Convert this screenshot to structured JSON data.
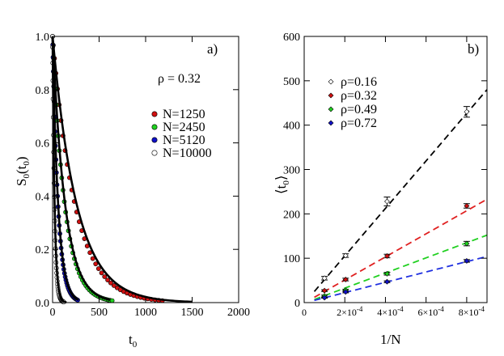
{
  "chart_data": [
    {
      "type": "scatter",
      "panel_label": "a)",
      "annotation": "ρ = 0.32",
      "xlabel": "t",
      "xlabel_sub": "0",
      "ylabel": "S",
      "ylabel_sub": "0",
      "ylabel_arg": "t",
      "ylabel_arg_sub": "0",
      "xlim": [
        0,
        2000
      ],
      "ylim": [
        0,
        1.0
      ],
      "xticks": [
        0,
        500,
        1000,
        1500,
        2000
      ],
      "xtick_labels": [
        "0",
        "500",
        "1000",
        "1500",
        "2000"
      ],
      "yticks": [
        0,
        0.2,
        0.4,
        0.6,
        0.8,
        1.0
      ],
      "ytick_labels": [
        "0.0",
        "0.2",
        "0.4",
        "0.6",
        "0.8",
        "1.0"
      ],
      "legend_position": "right",
      "series": [
        {
          "name": "N=1250",
          "color": "#d01010",
          "tau": 240,
          "tmax": 1180
        },
        {
          "name": "N=2450",
          "color": "#20d020",
          "tau": 130,
          "tmax": 640
        },
        {
          "name": "N=5120",
          "color": "#1010c8",
          "tau": 58,
          "tmax": 270
        },
        {
          "name": "N=10000",
          "color": "#ffffff",
          "tau": 20,
          "tmax": 120
        }
      ],
      "black_curves": [
        {
          "tau": 260,
          "tmax": 1500
        },
        {
          "tau": 135,
          "tmax": 620
        },
        {
          "tau": 60,
          "tmax": 280
        },
        {
          "tau": 22,
          "tmax": 150
        }
      ]
    },
    {
      "type": "scatter",
      "panel_label": "b)",
      "xlabel": "1/N",
      "ylabel": "⟨t",
      "ylabel_sub": "0",
      "ylabel_close": "⟩",
      "xlim": [
        0,
        0.0009
      ],
      "ylim": [
        0,
        600
      ],
      "xticks": [
        0,
        0.0002,
        0.0004,
        0.0006,
        0.0008
      ],
      "xtick_labels": [
        "0",
        "2×10",
        "4×10",
        "6×10",
        "8×10"
      ],
      "xtick_exponent": "-4",
      "yticks": [
        0,
        100,
        200,
        300,
        400,
        500,
        600
      ],
      "ytick_labels": [
        "0",
        "100",
        "200",
        "300",
        "400",
        "500",
        "600"
      ],
      "legend_position": "top-left",
      "series": [
        {
          "name": "ρ=0.16",
          "color": "#ffffff",
          "line_color": "#000000",
          "x": [
            0.0001,
            0.000204,
            0.000408,
            0.0008
          ],
          "y": [
            55,
            106,
            228,
            430
          ],
          "err": [
            4,
            4,
            10,
            12
          ],
          "fit": [
            [
              5e-05,
              25
            ],
            [
              0.0009,
              480
            ]
          ]
        },
        {
          "name": "ρ=0.32",
          "color": "#d01010",
          "line_color": "#e02020",
          "x": [
            0.0001,
            0.000204,
            0.000408,
            0.0008
          ],
          "y": [
            27,
            52,
            105,
            218
          ],
          "err": [
            2,
            3,
            4,
            5
          ],
          "fit": [
            [
              5e-05,
              12
            ],
            [
              0.0009,
              233
            ]
          ]
        },
        {
          "name": "ρ=0.49",
          "color": "#20d020",
          "line_color": "#20d020",
          "x": [
            0.0001,
            0.000204,
            0.000408,
            0.0008
          ],
          "y": [
            15,
            28,
            65,
            133
          ],
          "err": [
            2,
            2,
            3,
            5
          ],
          "fit": [
            [
              5e-05,
              7
            ],
            [
              0.0009,
              152
            ]
          ]
        },
        {
          "name": "ρ=0.72",
          "color": "#1010c8",
          "line_color": "#2030e0",
          "x": [
            0.0001,
            0.000204,
            0.000408,
            0.0008
          ],
          "y": [
            11,
            24,
            47,
            94
          ],
          "err": [
            1,
            2,
            2,
            3
          ],
          "fit": [
            [
              5e-05,
              5
            ],
            [
              0.0009,
              104
            ]
          ]
        }
      ]
    }
  ]
}
